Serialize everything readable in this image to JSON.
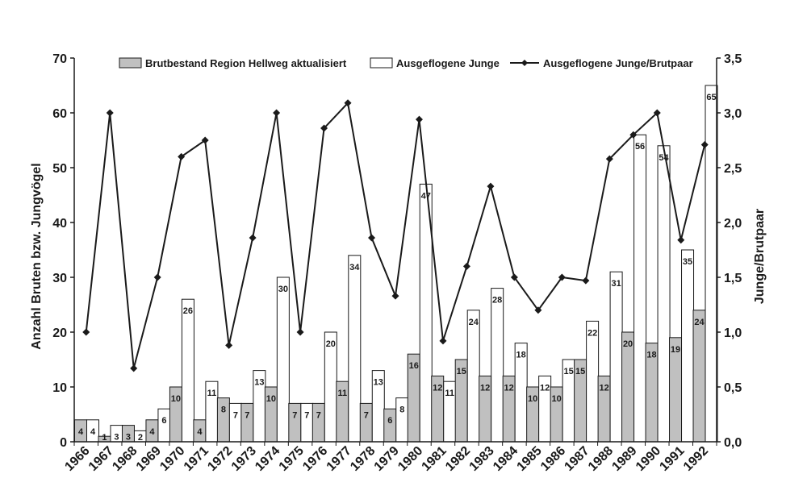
{
  "chart_data": {
    "type": "bar",
    "categories": [
      "1966",
      "1967",
      "1968",
      "1969",
      "1970",
      "1971",
      "1972",
      "1973",
      "1974",
      "1975",
      "1976",
      "1977",
      "1978",
      "1979",
      "1980",
      "1981",
      "1982",
      "1983",
      "1984",
      "1985",
      "1986",
      "1987",
      "1988",
      "1989",
      "1990",
      "1991",
      "1992"
    ],
    "series": [
      {
        "name": "Brutbestand Region Hellweg aktualisiert",
        "type": "bar",
        "color": "#c0c0c0",
        "axis": "left",
        "values": [
          4,
          1,
          3,
          4,
          10,
          4,
          8,
          7,
          10,
          7,
          7,
          11,
          7,
          6,
          16,
          12,
          15,
          12,
          12,
          10,
          10,
          15,
          12,
          20,
          18,
          19,
          24
        ]
      },
      {
        "name": "Ausgeflogene Junge",
        "type": "bar",
        "color": "#ffffff",
        "axis": "left",
        "values": [
          4,
          3,
          2,
          6,
          26,
          11,
          7,
          13,
          30,
          7,
          20,
          34,
          13,
          8,
          47,
          11,
          24,
          28,
          18,
          12,
          15,
          22,
          31,
          56,
          54,
          35,
          65
        ]
      },
      {
        "name": "Ausgeflogene Junge/Brutpaar",
        "type": "line",
        "color": "#1a1a1a",
        "axis": "right",
        "values": [
          1.0,
          3.0,
          0.67,
          1.5,
          2.6,
          2.75,
          0.88,
          1.86,
          3.0,
          1.0,
          2.86,
          3.09,
          1.86,
          1.33,
          2.94,
          0.92,
          1.6,
          2.33,
          1.5,
          1.2,
          1.5,
          1.47,
          2.58,
          2.8,
          3.0,
          1.84,
          2.71
        ]
      }
    ],
    "ylabel": "Anzahl Bruten bzw. Jungvögel",
    "y2label": "Junge/Brutpaar",
    "ylim": [
      0,
      70
    ],
    "y2lim": [
      0,
      3.5
    ],
    "yticks": [
      "0",
      "10",
      "20",
      "30",
      "40",
      "50",
      "60",
      "70"
    ],
    "y2ticks": [
      "0,0",
      "0,5",
      "1,0",
      "1,5",
      "2,0",
      "2,5",
      "3,0",
      "3,5"
    ],
    "grid": false,
    "legend_position": "top"
  }
}
